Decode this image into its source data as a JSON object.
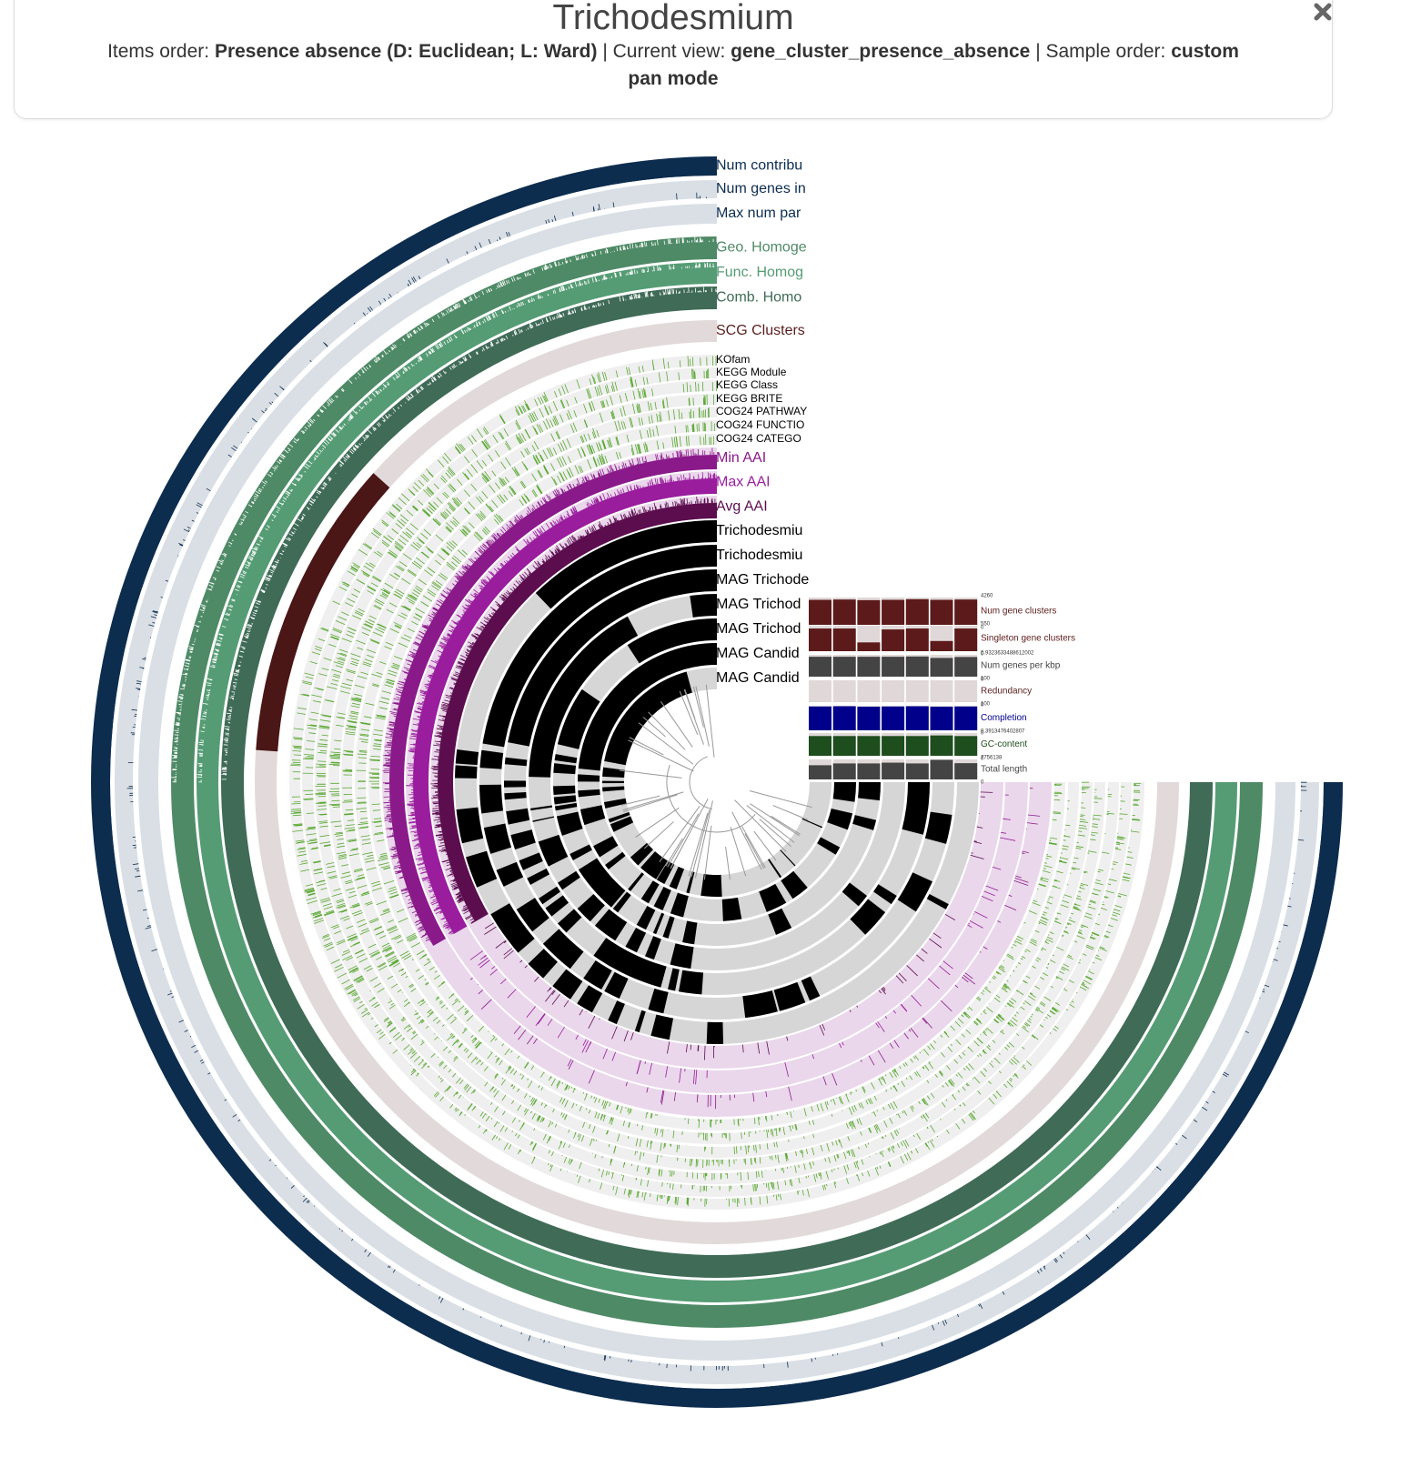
{
  "header": {
    "title": "Trichodesmium",
    "items_order_label": "Items order:",
    "items_order": "Presence absence (D: Euclidean; L: Ward)",
    "current_view_label": "| Current view:",
    "current_view": "gene_cluster_presence_absence",
    "sample_order_label": "| Sample order:",
    "sample_order": "custom",
    "mode": "pan mode"
  },
  "layers": [
    "Num contribu",
    "Num genes in",
    "Max num par",
    "Geo. Homoge",
    "Func. Homog",
    "Comb. Homo",
    "SCG Clusters",
    "KOfam",
    "KEGG Module",
    "KEGG Class",
    "KEGG BRITE",
    "COG24 PATHWAY",
    "COG24 FUNCTIO",
    "COG24 CATEGO",
    "Min AAI",
    "Max AAI",
    "Avg AAI"
  ],
  "samples": [
    "Trichodesmiu",
    "Trichodesmiu",
    "MAG Trichode",
    "MAG Trichod",
    "MAG Trichod",
    "MAG Candid",
    "MAG Candid"
  ],
  "panel": {
    "rows": [
      {
        "label": "Num gene clusters",
        "max": 4260,
        "min": 0,
        "values": [
          3900,
          3950,
          3850,
          3900,
          4000,
          3900,
          3950
        ]
      },
      {
        "label": "Singleton gene clusters",
        "max": 550,
        "min": 0,
        "values": [
          490,
          490,
          190,
          470,
          490,
          220,
          490
        ]
      },
      {
        "label": "Num genes per kbp",
        "max": 0.9323633488612002,
        "min": 0,
        "values": [
          0.85,
          0.85,
          0.85,
          0.85,
          0.86,
          0.8,
          0.84
        ]
      },
      {
        "label": "Redundancy",
        "max": 100,
        "min": 0,
        "values": [
          2,
          1,
          1,
          3,
          1,
          1,
          2
        ]
      },
      {
        "label": "Completion",
        "max": 100,
        "min": 0,
        "values": [
          97,
          98,
          96,
          97,
          98,
          96,
          97
        ]
      },
      {
        "label": "GC-content",
        "max": 0.3913476402807,
        "min": 0,
        "values": [
          0.34,
          0.34,
          0.34,
          0.34,
          0.34,
          0.35,
          0.34
        ]
      },
      {
        "label": "Total length",
        "max": 7756138,
        "min": 0,
        "values": [
          5500000,
          6200000,
          6200000,
          6500000,
          6200000,
          7600000,
          6300000
        ]
      }
    ]
  }
}
